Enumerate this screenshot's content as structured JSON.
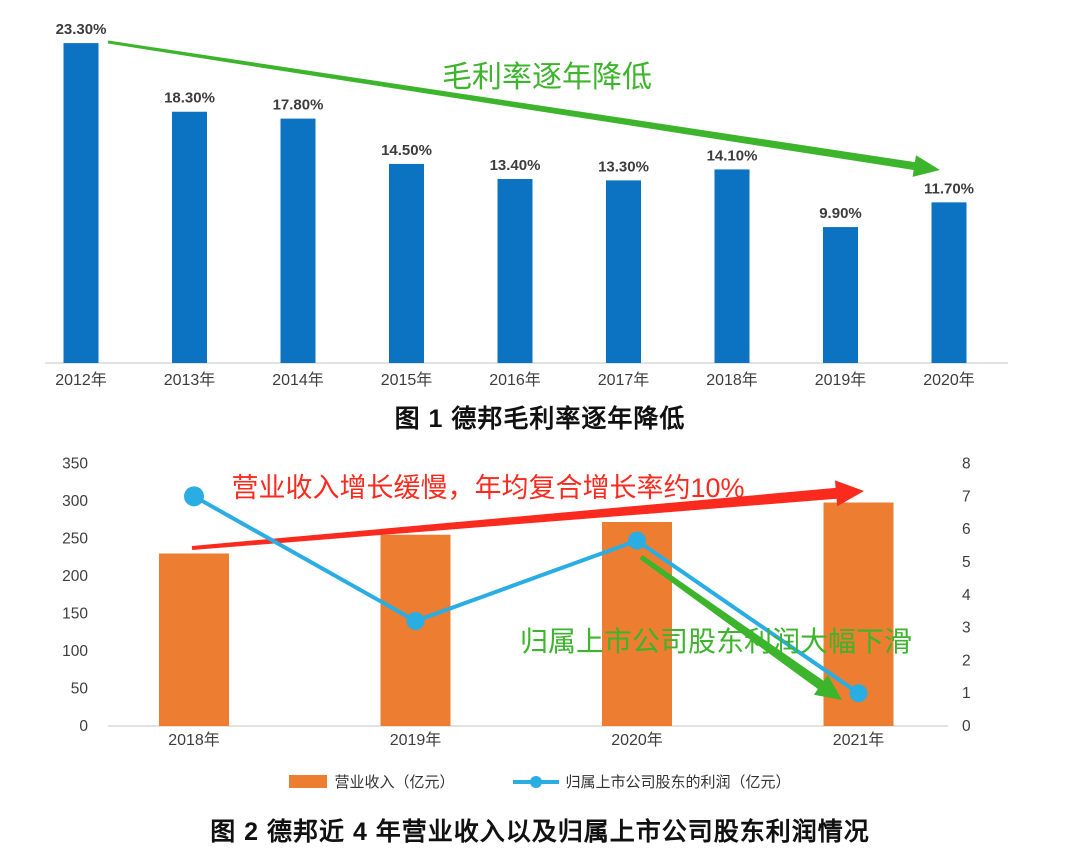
{
  "colors": {
    "bar_blue": "#0b73c1",
    "bar_orange": "#ed7d31",
    "line_cyan": "#29ade3",
    "annotation_green": "#3cb42c",
    "annotation_red": "#fb2a1e",
    "label_gray": "#3d3d3d",
    "axis_line": "#d9d9d9"
  },
  "chart_data": [
    {
      "type": "bar",
      "title": "图 1 德邦毛利率逐年降低",
      "categories": [
        "2012年",
        "2013年",
        "2014年",
        "2015年",
        "2016年",
        "2017年",
        "2018年",
        "2019年",
        "2020年"
      ],
      "values": [
        23.3,
        18.3,
        17.8,
        14.5,
        13.4,
        13.3,
        14.1,
        9.9,
        11.7
      ],
      "data_labels": [
        "23.30%",
        "18.30%",
        "17.80%",
        "14.50%",
        "13.40%",
        "13.30%",
        "14.10%",
        "9.90%",
        "11.70%"
      ],
      "ylabel": "",
      "xlabel": "",
      "ylim": [
        0,
        26.5
      ],
      "grid": false,
      "bar_color": "#0b73c1",
      "annotation": {
        "text": "毛利率逐年降低",
        "color": "#3cb42c"
      }
    },
    {
      "type": "combo",
      "title": "图 2 德邦近 4 年营业收入以及归属上市公司股东利润情况",
      "categories": [
        "2018年",
        "2019年",
        "2020年",
        "2021年"
      ],
      "series": [
        {
          "name": "营业收入（亿元）",
          "chart": "bar",
          "axis": "left",
          "color": "#ed7d31",
          "values": [
            230,
            255,
            272,
            298
          ]
        },
        {
          "name": "归属上市公司股东的利润（亿元）",
          "chart": "line",
          "axis": "right",
          "color": "#29ade3",
          "values": [
            7.0,
            3.2,
            5.65,
            1.0
          ]
        }
      ],
      "left_axis": {
        "min": 0,
        "max": 350,
        "step": 50,
        "ticks": [
          "0",
          "50",
          "100",
          "150",
          "200",
          "250",
          "300",
          "350"
        ]
      },
      "right_axis": {
        "min": 0,
        "max": 8,
        "step": 1,
        "ticks": [
          "0",
          "1",
          "2",
          "3",
          "4",
          "5",
          "6",
          "7",
          "8"
        ]
      },
      "grid": false,
      "legend_position": "bottom",
      "annotations": [
        {
          "text": "营业收入增长缓慢，年均复合增长率约10%",
          "color": "#fb2a1e"
        },
        {
          "text": "归属上市公司股东利润大幅下滑",
          "color": "#3cb42c"
        }
      ]
    }
  ]
}
